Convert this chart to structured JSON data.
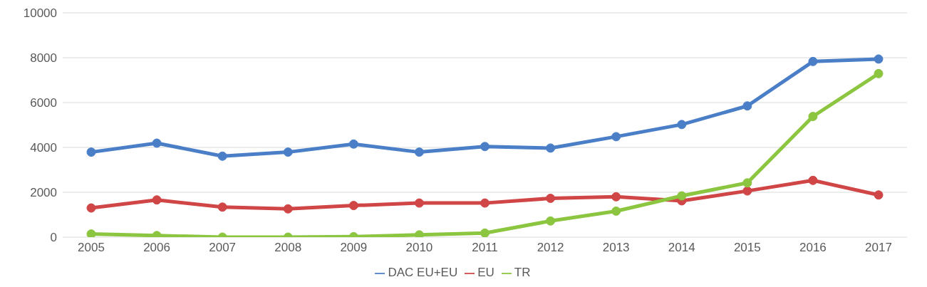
{
  "chart_data": {
    "type": "line",
    "categories": [
      "2005",
      "2006",
      "2007",
      "2008",
      "2009",
      "2010",
      "2011",
      "2012",
      "2013",
      "2014",
      "2015",
      "2016",
      "2017"
    ],
    "series": [
      {
        "name": "DAC EU+EU",
        "color": "#4a7fc8",
        "values": [
          3790,
          4190,
          3610,
          3790,
          4150,
          3790,
          4040,
          3970,
          4480,
          5020,
          5850,
          7830,
          7940
        ]
      },
      {
        "name": "EU",
        "color": "#d04545",
        "values": [
          1300,
          1660,
          1340,
          1260,
          1410,
          1520,
          1520,
          1730,
          1800,
          1620,
          2060,
          2530,
          1880
        ]
      },
      {
        "name": "TR",
        "color": "#8cc540",
        "values": [
          140,
          70,
          0,
          0,
          20,
          100,
          180,
          720,
          1160,
          1840,
          2420,
          5380,
          7290
        ]
      }
    ],
    "ylim": [
      0,
      10000
    ],
    "yticks": [
      0,
      2000,
      4000,
      6000,
      8000,
      10000
    ],
    "grid": "y",
    "legend": "bottom",
    "marker": "circle",
    "line_style": "solid"
  }
}
